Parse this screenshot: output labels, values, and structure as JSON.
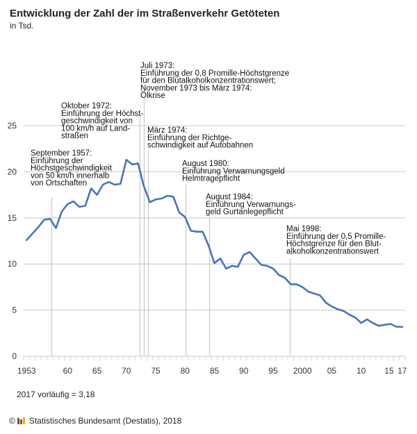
{
  "header": {
    "title": "Entwicklung der Zahl der im Straßenverkehr Getöteten",
    "subtitle": "in Tsd."
  },
  "note": "2017 vorläufig = 3,18",
  "footer": {
    "copyright_icon": "copyright-icon",
    "logo_icon": "destatis-logo-icon",
    "text": "Statistisches Bundesamt (Destatis), 2018"
  },
  "colors": {
    "line": "#4a72b8",
    "grid": "#d4d4d4",
    "marker": "#c8c8c8"
  },
  "chart_data": {
    "type": "line",
    "title": "Entwicklung der Zahl der im Straßenverkehr Getöteten",
    "subtitle": "in Tsd.",
    "xlabel": "",
    "ylabel": "in Tsd.",
    "ylim": [
      0,
      25
    ],
    "xlim": [
      1953,
      2017
    ],
    "grid": true,
    "legend": "none",
    "yticks": [
      0,
      5,
      10,
      15,
      20,
      25
    ],
    "xtick_labels": [
      {
        "year": 1953,
        "label": "1953"
      },
      {
        "year": 1960,
        "label": "60"
      },
      {
        "year": 1965,
        "label": "65"
      },
      {
        "year": 1970,
        "label": "70"
      },
      {
        "year": 1975,
        "label": "75"
      },
      {
        "year": 1980,
        "label": "80"
      },
      {
        "year": 1985,
        "label": "85"
      },
      {
        "year": 1990,
        "label": "90"
      },
      {
        "year": 1995,
        "label": "95"
      },
      {
        "year": 2000,
        "label": "2000"
      },
      {
        "year": 2005,
        "label": "05"
      },
      {
        "year": 2010,
        "label": "10"
      },
      {
        "year": 2015,
        "label": "15"
      },
      {
        "year": 2017,
        "label": "17"
      }
    ],
    "series": [
      {
        "name": "Getötete im Straßenverkehr (Tsd.)",
        "x": [
          1953,
          1954,
          1955,
          1956,
          1957,
          1958,
          1959,
          1960,
          1961,
          1962,
          1963,
          1964,
          1965,
          1966,
          1967,
          1968,
          1969,
          1970,
          1971,
          1972,
          1973,
          1974,
          1975,
          1976,
          1977,
          1978,
          1979,
          1980,
          1981,
          1982,
          1983,
          1984,
          1985,
          1986,
          1987,
          1988,
          1989,
          1990,
          1991,
          1992,
          1993,
          1994,
          1995,
          1996,
          1997,
          1998,
          1999,
          2000,
          2001,
          2002,
          2003,
          2004,
          2005,
          2006,
          2007,
          2008,
          2009,
          2010,
          2011,
          2012,
          2013,
          2014,
          2015,
          2016,
          2017
        ],
        "values": [
          12.6,
          13.3,
          14.0,
          14.8,
          14.9,
          13.9,
          15.7,
          16.5,
          16.8,
          16.2,
          16.3,
          18.2,
          17.5,
          18.6,
          18.9,
          18.6,
          18.7,
          21.3,
          20.8,
          20.9,
          18.4,
          16.7,
          17.0,
          17.1,
          17.4,
          17.3,
          15.6,
          15.1,
          13.6,
          13.5,
          13.5,
          12.0,
          10.1,
          10.6,
          9.5,
          9.8,
          9.7,
          11.0,
          11.3,
          10.6,
          9.9,
          9.8,
          9.5,
          8.8,
          8.5,
          7.8,
          7.8,
          7.5,
          7.0,
          6.8,
          6.6,
          5.8,
          5.4,
          5.1,
          4.9,
          4.5,
          4.2,
          3.6,
          4.0,
          3.6,
          3.3,
          3.4,
          3.5,
          3.2,
          3.18
        ]
      }
    ],
    "annotations": [
      {
        "year": 1957.7,
        "lines": [
          "September 1957:",
          "Einführung der",
          "Höchstgeschwindigkeit",
          "von 50 km/h innerhalb",
          "von Ortschaften"
        ]
      },
      {
        "year": 1972.8,
        "lines": [
          "Oktober 1972:",
          "Einführung der Höchst-",
          "geschwindigkeit von",
          "100 km/h auf Land-",
          "straßen"
        ]
      },
      {
        "year": 1973.5,
        "lines": [
          "Juli 1973:",
          "Einführung der 0,8 Promille-Höchstgrenze",
          "für den Blutalkoholkonzentrationswert;",
          "November 1973 bis März 1974:",
          "Ölkrise"
        ]
      },
      {
        "year": 1974.2,
        "lines": [
          "März 1974:",
          "Einführung der Richtge-",
          "schwindigkeit auf Autobahnen"
        ]
      },
      {
        "year": 1980.6,
        "lines": [
          "August 1980:",
          "Einführung Verwarnungsgeld",
          "Helmtragepflicht"
        ]
      },
      {
        "year": 1984.6,
        "lines": [
          "August 1984:",
          "Einführung Verwarnungs-",
          "geld Gurtanlegepflicht"
        ]
      },
      {
        "year": 1998.4,
        "lines": [
          "Mai 1998:",
          "Einführung der 0,5 Promille-",
          "Höchstgrenze für den Blut-",
          "alkoholkonzentrationswert"
        ]
      }
    ]
  }
}
